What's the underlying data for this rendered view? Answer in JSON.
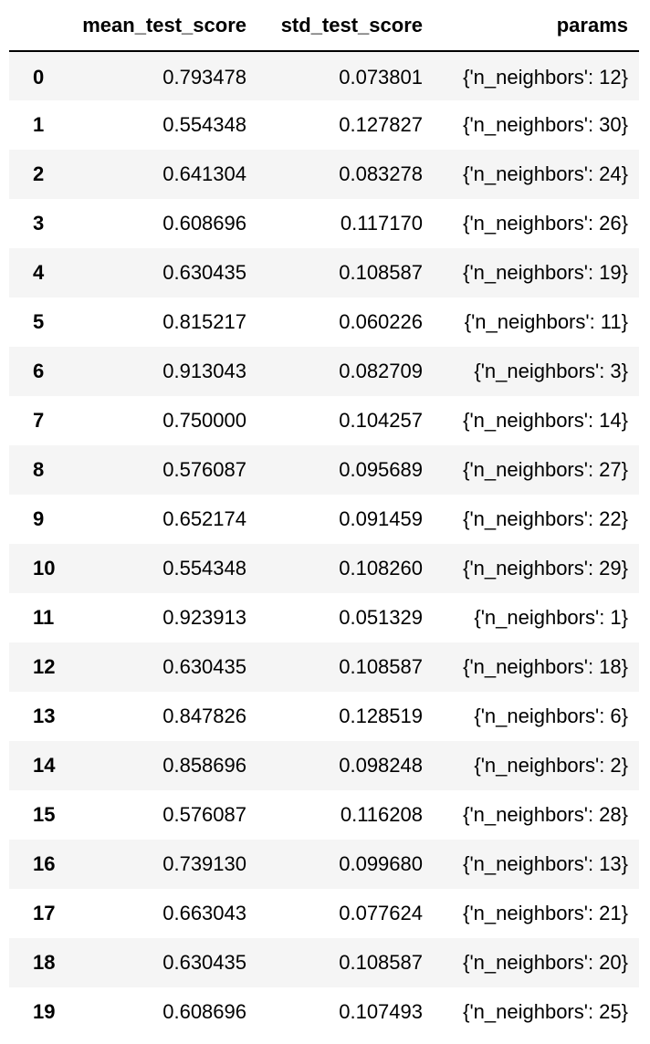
{
  "table": {
    "columns": [
      "",
      "mean_test_score",
      "std_test_score",
      "params"
    ],
    "rows": [
      {
        "index": "0",
        "mean_test_score": "0.793478",
        "std_test_score": "0.073801",
        "params": "{'n_neighbors': 12}"
      },
      {
        "index": "1",
        "mean_test_score": "0.554348",
        "std_test_score": "0.127827",
        "params": "{'n_neighbors': 30}"
      },
      {
        "index": "2",
        "mean_test_score": "0.641304",
        "std_test_score": "0.083278",
        "params": "{'n_neighbors': 24}"
      },
      {
        "index": "3",
        "mean_test_score": "0.608696",
        "std_test_score": "0.117170",
        "params": "{'n_neighbors': 26}"
      },
      {
        "index": "4",
        "mean_test_score": "0.630435",
        "std_test_score": "0.108587",
        "params": "{'n_neighbors': 19}"
      },
      {
        "index": "5",
        "mean_test_score": "0.815217",
        "std_test_score": "0.060226",
        "params": "{'n_neighbors': 11}"
      },
      {
        "index": "6",
        "mean_test_score": "0.913043",
        "std_test_score": "0.082709",
        "params": "{'n_neighbors': 3}"
      },
      {
        "index": "7",
        "mean_test_score": "0.750000",
        "std_test_score": "0.104257",
        "params": "{'n_neighbors': 14}"
      },
      {
        "index": "8",
        "mean_test_score": "0.576087",
        "std_test_score": "0.095689",
        "params": "{'n_neighbors': 27}"
      },
      {
        "index": "9",
        "mean_test_score": "0.652174",
        "std_test_score": "0.091459",
        "params": "{'n_neighbors': 22}"
      },
      {
        "index": "10",
        "mean_test_score": "0.554348",
        "std_test_score": "0.108260",
        "params": "{'n_neighbors': 29}"
      },
      {
        "index": "11",
        "mean_test_score": "0.923913",
        "std_test_score": "0.051329",
        "params": "{'n_neighbors': 1}"
      },
      {
        "index": "12",
        "mean_test_score": "0.630435",
        "std_test_score": "0.108587",
        "params": "{'n_neighbors': 18}"
      },
      {
        "index": "13",
        "mean_test_score": "0.847826",
        "std_test_score": "0.128519",
        "params": "{'n_neighbors': 6}"
      },
      {
        "index": "14",
        "mean_test_score": "0.858696",
        "std_test_score": "0.098248",
        "params": "{'n_neighbors': 2}"
      },
      {
        "index": "15",
        "mean_test_score": "0.576087",
        "std_test_score": "0.116208",
        "params": "{'n_neighbors': 28}"
      },
      {
        "index": "16",
        "mean_test_score": "0.739130",
        "std_test_score": "0.099680",
        "params": "{'n_neighbors': 13}"
      },
      {
        "index": "17",
        "mean_test_score": "0.663043",
        "std_test_score": "0.077624",
        "params": "{'n_neighbors': 21}"
      },
      {
        "index": "18",
        "mean_test_score": "0.630435",
        "std_test_score": "0.108587",
        "params": "{'n_neighbors': 20}"
      },
      {
        "index": "19",
        "mean_test_score": "0.608696",
        "std_test_score": "0.107493",
        "params": "{'n_neighbors': 25}"
      }
    ]
  }
}
